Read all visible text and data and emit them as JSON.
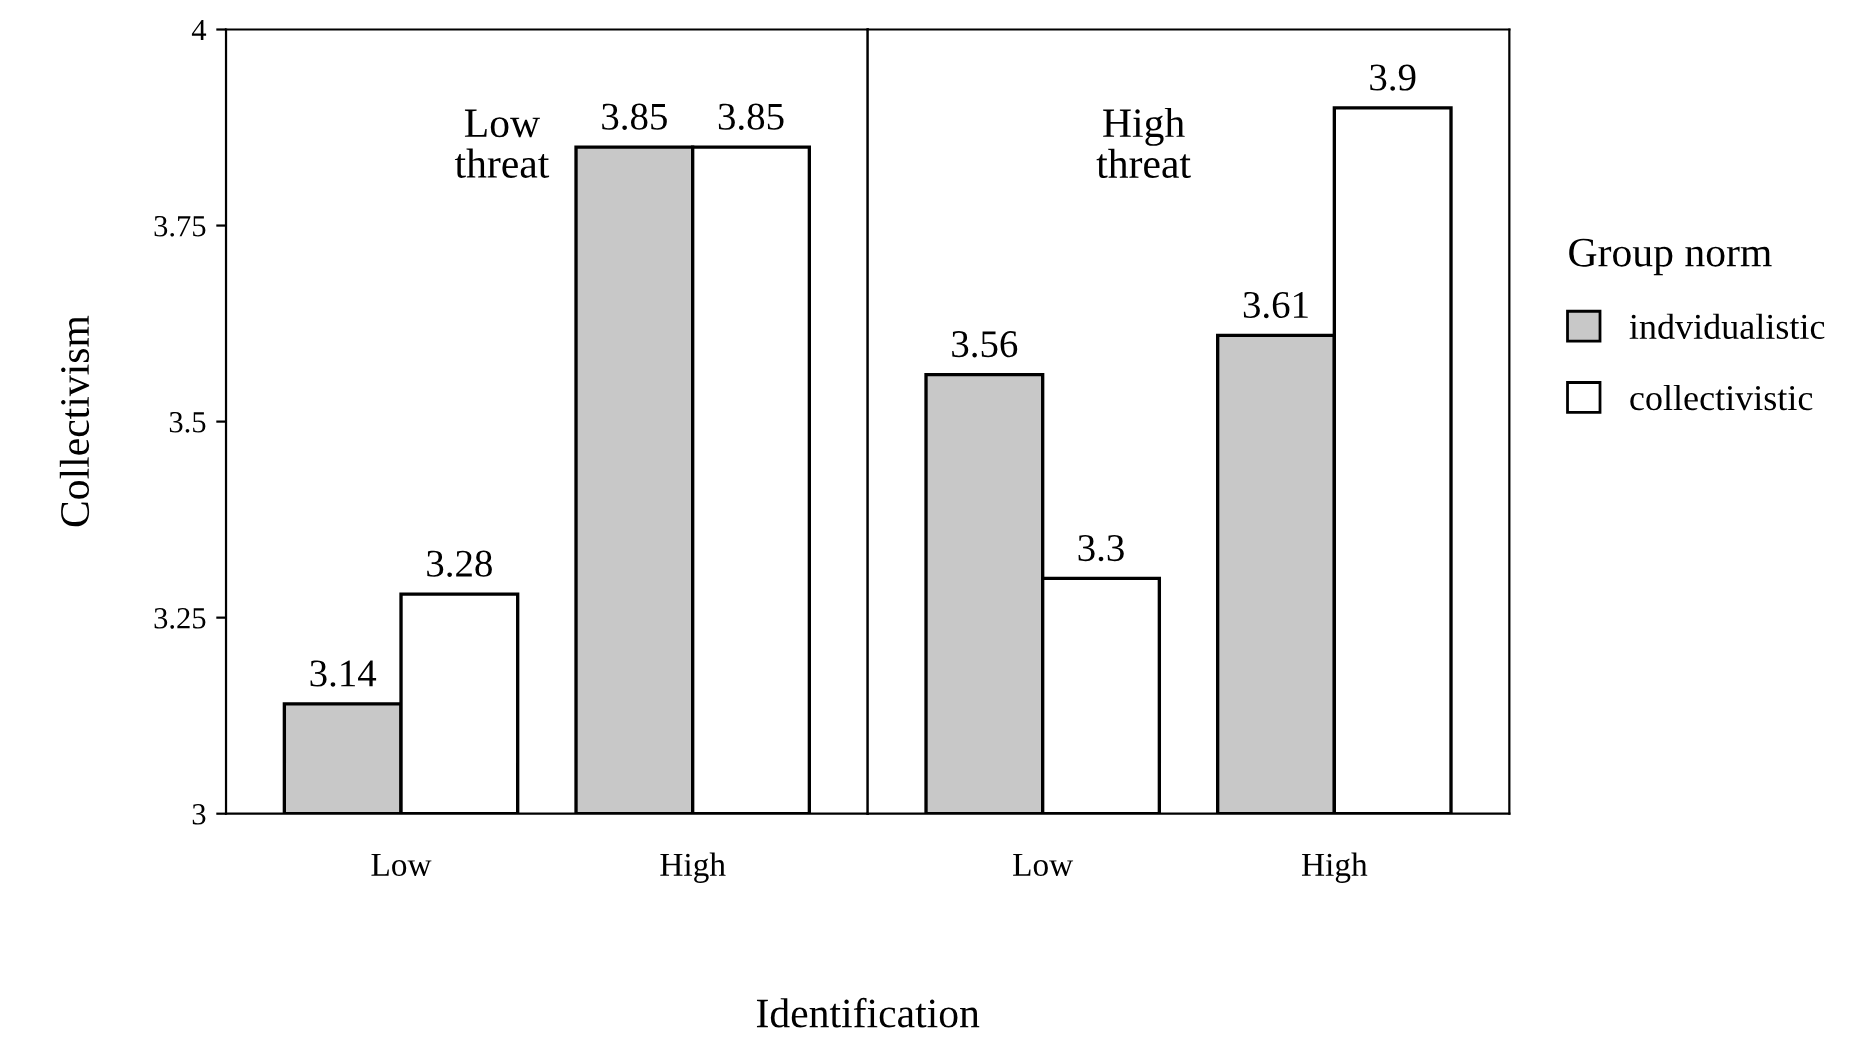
{
  "chart_data": [
    {
      "type": "bar",
      "categories": [
        "Low",
        "High"
      ],
      "xlabel": "Identification",
      "ylabel": "Collectivism",
      "ylim": [
        3,
        4
      ],
      "yticks": [
        3,
        3.25,
        3.5,
        3.75,
        4
      ],
      "data_labels": true,
      "legend": false,
      "annotations": [
        "Low\nthreat"
      ],
      "series": [
        {
          "color": "#c8c8c8",
          "values": [
            3.14,
            3.85
          ]
        },
        {
          "color": "#ffffff",
          "values": [
            3.28,
            3.85
          ]
        }
      ]
    },
    {
      "type": "bar",
      "categories": [
        "Low",
        "High"
      ],
      "ylim": [
        3,
        4
      ],
      "tick_labels": "x",
      "data_labels": true,
      "legend": "right",
      "legend_title": "Group norm",
      "annotations": [
        "High\nthreat"
      ],
      "series": [
        {
          "name": "indvidualistic",
          "color": "#c8c8c8",
          "values": [
            3.56,
            3.61
          ]
        },
        {
          "name": "collectivistic",
          "color": "#ffffff",
          "values": [
            3.3,
            3.9
          ]
        }
      ]
    }
  ]
}
